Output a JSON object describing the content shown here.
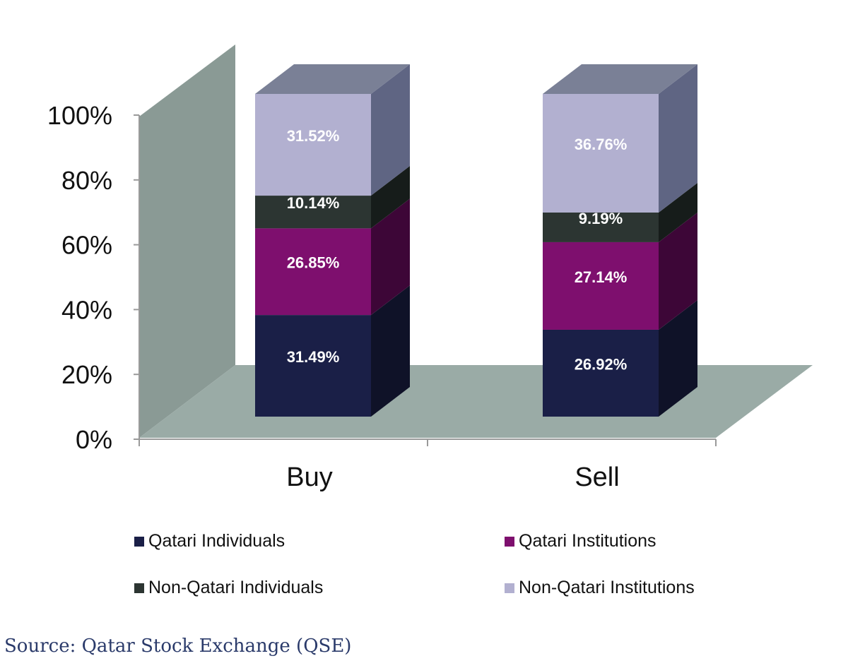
{
  "chart_data": {
    "type": "bar",
    "stacked": true,
    "style": "3d",
    "categories": [
      "Buy",
      "Sell"
    ],
    "series": [
      {
        "name": "Qatari Individuals",
        "values": [
          31.49,
          26.92
        ],
        "labels": [
          "31.49%",
          "26.92%"
        ],
        "color": "#1a1f47",
        "side_color": "#0f1228",
        "top_color": "#2c3266"
      },
      {
        "name": "Qatari Institutions",
        "values": [
          26.85,
          27.14
        ],
        "labels": [
          "26.85%",
          "27.14%"
        ],
        "color": "#7e0f6e",
        "side_color": "#3d0637",
        "top_color": "#9c2a8c"
      },
      {
        "name": "Non-Qatari Individuals",
        "values": [
          10.14,
          9.19
        ],
        "labels": [
          "10.14%",
          "9.19%"
        ],
        "color": "#2c3532",
        "side_color": "#161c1a",
        "top_color": "#48524f"
      },
      {
        "name": "Non-Qatari Institutions",
        "values": [
          31.52,
          36.76
        ],
        "labels": [
          "31.52%",
          "36.76%"
        ],
        "color": "#b2b0d0",
        "side_color": "#5f6583",
        "top_color": "#7a8096"
      }
    ],
    "y_ticks": [
      "0%",
      "20%",
      "40%",
      "60%",
      "80%",
      "100%"
    ],
    "ylim": [
      0,
      100
    ],
    "legend": "bottom",
    "wall_color": "#8a9a95",
    "floor_color": "#9aaba6"
  },
  "source": "Source: Qatar Stock Exchange (QSE)"
}
